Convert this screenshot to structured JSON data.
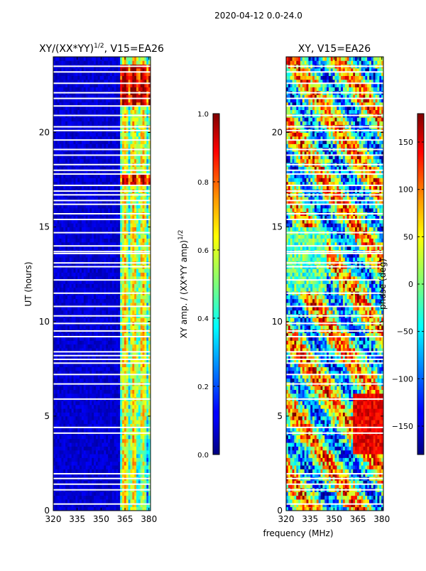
{
  "figure": {
    "suptitle": "2020-04-12 0.0-24.0",
    "shared_xlabel": "frequency (MHz)"
  },
  "chart_data": [
    {
      "type": "heatmap",
      "title": "XY/(XX*YY)",
      "title_exponent": "1/2",
      "title_suffix": ", V15=EA26",
      "xlabel": "",
      "ylabel": "UT (hours)",
      "xlim": [
        320,
        381
      ],
      "ylim": [
        0,
        24
      ],
      "xticks": [
        320,
        335,
        350,
        365,
        380
      ],
      "yticks": [
        0,
        5,
        10,
        15,
        20
      ],
      "colorbar": {
        "label": "XY amp. / (XX*YY amp)",
        "label_exponent": "1/2",
        "range": [
          0.0,
          1.0
        ],
        "ticks": [
          "0.0",
          "0.2",
          "0.4",
          "0.6",
          "0.8",
          "1.0"
        ],
        "colormap": "jet"
      },
      "description": "Normalized XY amplitude: mostly low (~0.05) below 362 MHz, elevated (~0.5-0.9) in bands 362-381 MHz, strongest near 21.5-23.5 UT and ~17.5 UT",
      "gap_hours": [
        0.35,
        1.1,
        1.4,
        1.7,
        1.95,
        4.1,
        4.4,
        5.9,
        6.7,
        7.2,
        7.8,
        8.0,
        8.2,
        8.4,
        9.2,
        9.5,
        9.9,
        10.3,
        10.8,
        11.5,
        12.2,
        12.9,
        13.1,
        13.6,
        13.7,
        14.0,
        14.7,
        15.4,
        15.7,
        16.2,
        16.4,
        16.7,
        16.9,
        17.2,
        17.8,
        18.0,
        18.3,
        18.8,
        19.1,
        19.6,
        20.1,
        20.3,
        20.9,
        21.4,
        21.8,
        22.1,
        22.6,
        23.2,
        23.5
      ]
    },
    {
      "type": "heatmap",
      "title": "XY, V15=EA26",
      "xlabel": "",
      "ylabel": "",
      "xlim": [
        320,
        381
      ],
      "ylim": [
        0,
        24
      ],
      "xticks": [
        320,
        335,
        350,
        365,
        380
      ],
      "yticks": [
        0,
        5,
        10,
        15,
        20
      ],
      "colorbar": {
        "label": "phase (deg)",
        "range": [
          -180,
          180
        ],
        "ticks": [
          "−150",
          "−100",
          "−50",
          "0",
          "50",
          "100",
          "150"
        ],
        "colormap": "jet"
      },
      "description": "XY phase in degrees: noisy mixture of values across all frequencies, with a coherent red (~150 deg) patch near 362-381 MHz around 3-6 UT",
      "gap_hours": [
        0.35,
        1.1,
        1.4,
        1.7,
        1.95,
        4.1,
        4.4,
        5.9,
        6.7,
        7.2,
        7.8,
        8.0,
        8.2,
        8.4,
        9.2,
        9.5,
        9.9,
        10.3,
        10.8,
        11.5,
        12.2,
        12.9,
        13.1,
        13.6,
        13.7,
        14.0,
        14.7,
        15.4,
        15.7,
        16.2,
        16.4,
        16.7,
        16.9,
        17.2,
        17.8,
        18.0,
        18.3,
        18.8,
        19.1,
        19.6,
        20.1,
        20.3,
        20.9,
        21.4,
        21.8,
        22.1,
        22.6,
        23.2,
        23.5
      ]
    }
  ]
}
